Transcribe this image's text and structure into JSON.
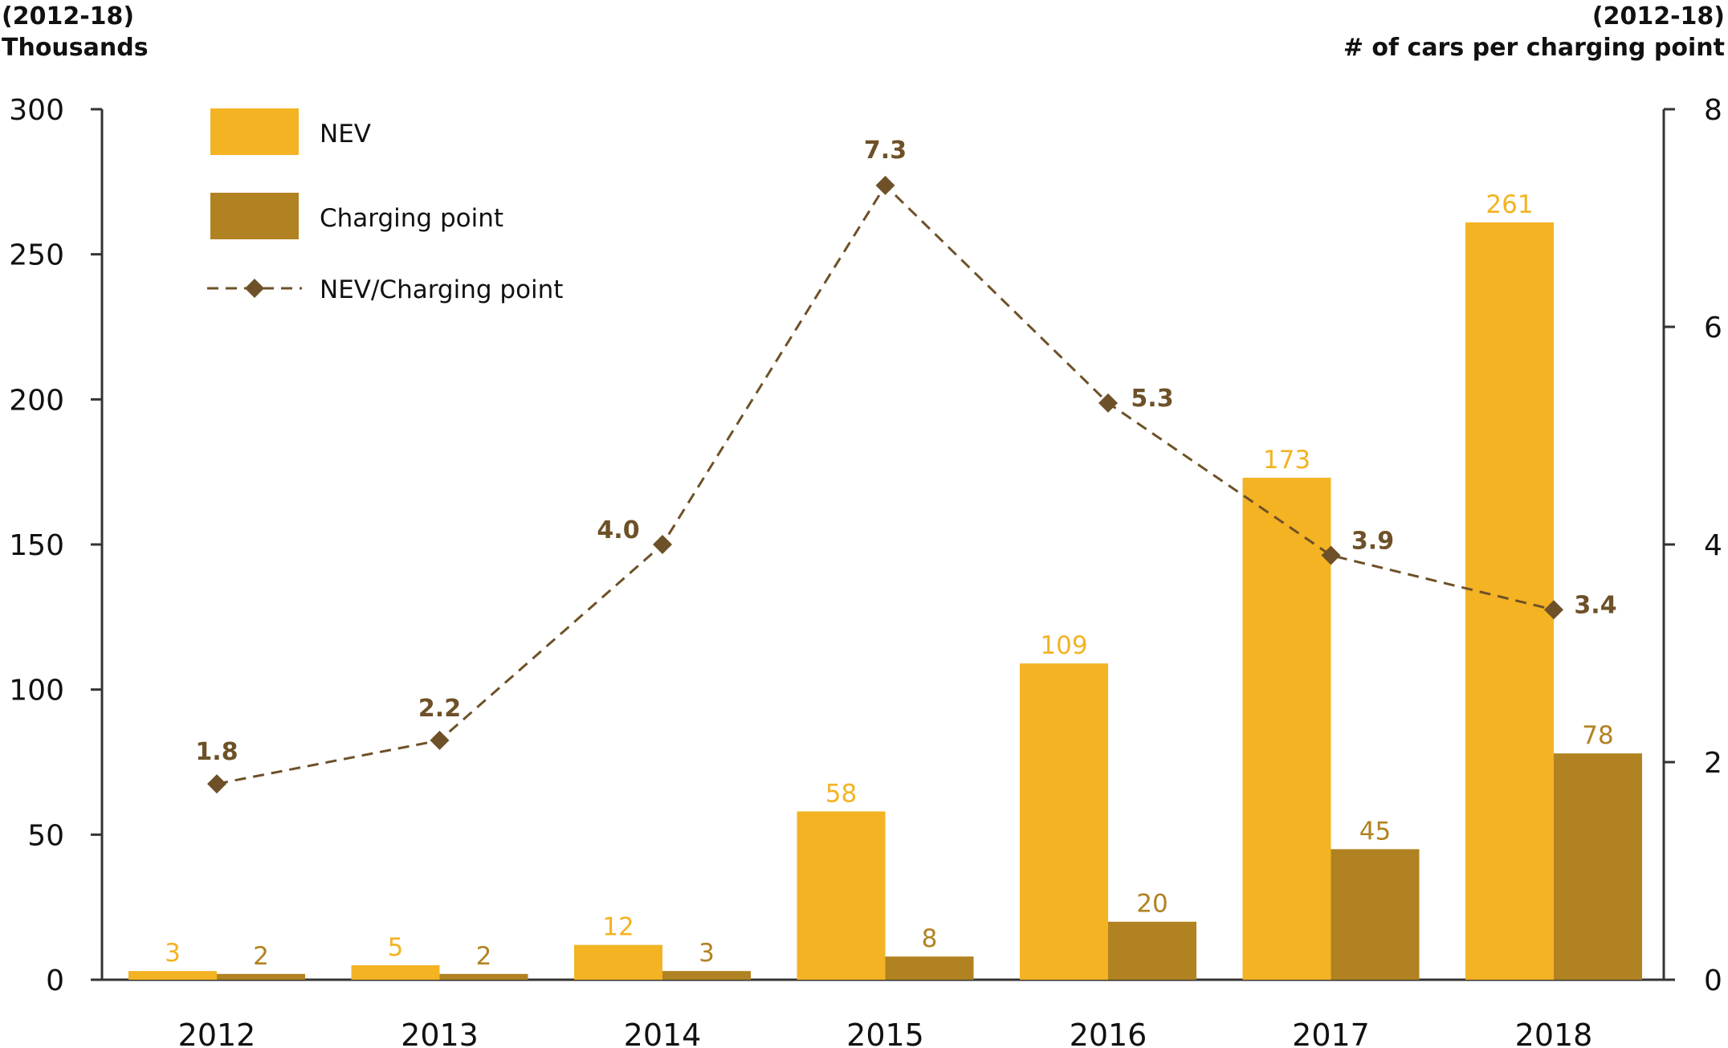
{
  "chart_data": {
    "type": "bar",
    "left_axis_title": [
      "(2012-18)",
      "Thousands"
    ],
    "right_axis_title": [
      "(2012-18)",
      "# of cars per charging point"
    ],
    "categories": [
      "2012",
      "2013",
      "2014",
      "2015",
      "2016",
      "2017",
      "2018"
    ],
    "series": [
      {
        "name": "NEV",
        "type": "bar",
        "axis": "left",
        "color": "#F3B323",
        "values": [
          3,
          5,
          12,
          58,
          109,
          173,
          261
        ]
      },
      {
        "name": "Charging point",
        "type": "bar",
        "axis": "left",
        "color": "#B18221",
        "values": [
          2,
          2,
          3,
          8,
          20,
          45,
          78
        ]
      },
      {
        "name": "NEV/Charging point",
        "type": "line",
        "axis": "right",
        "color": "#6E5128",
        "style": "dashed",
        "marker": "diamond",
        "values": [
          1.8,
          2.2,
          4.0,
          7.3,
          5.3,
          3.9,
          3.4
        ],
        "labels": [
          "1.8",
          "2.2",
          "4.0",
          "7.3",
          "5.3",
          "3.9",
          "3.4"
        ]
      }
    ],
    "y_left": {
      "min": 0,
      "max": 300,
      "ticks": [
        0,
        50,
        100,
        150,
        200,
        250,
        300
      ]
    },
    "y_right": {
      "min": 0,
      "max": 8,
      "ticks": [
        0,
        2,
        4,
        6,
        8
      ]
    },
    "grid": false,
    "legend_position": "top-left"
  }
}
